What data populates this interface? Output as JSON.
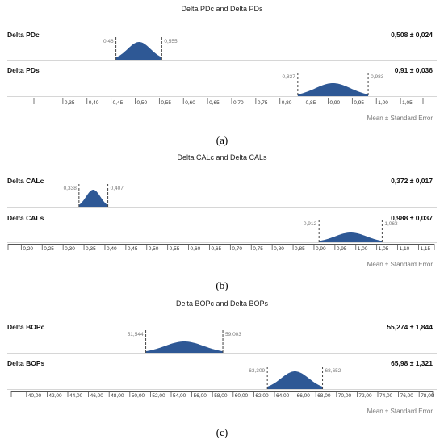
{
  "chart_data": [
    {
      "type": "area",
      "title": "Delta PDc and Delta PDs",
      "caption": "(a)",
      "footer": "Mean ± Standard Error",
      "xlim": [
        0.3,
        1.09
      ],
      "ticks": [
        "0,35",
        "0,40",
        "0,45",
        "0,50",
        "0,55",
        "0,60",
        "0,65",
        "0,70",
        "0,75",
        "0,80",
        "0,85",
        "0,90",
        "0,95",
        "1,00",
        "1,05"
      ],
      "tick_values": [
        0.35,
        0.4,
        0.45,
        0.5,
        0.55,
        0.6,
        0.65,
        0.7,
        0.75,
        0.8,
        0.85,
        0.9,
        0.95,
        1.0,
        1.05
      ],
      "series": [
        {
          "name": "Delta PDc",
          "mean": 0.508,
          "se": 0.024,
          "stat": "0,508 ± 0,024",
          "lower": 0.46,
          "upper": 0.555,
          "lower_label": "0,46",
          "upper_label": "0,555"
        },
        {
          "name": "Delta PDs",
          "mean": 0.91,
          "se": 0.036,
          "stat": "0,91 ± 0,036",
          "lower": 0.837,
          "upper": 0.983,
          "lower_label": "0,837",
          "upper_label": "0,983"
        }
      ]
    },
    {
      "type": "area",
      "title": "Delta CALc and Delta CALs",
      "caption": "(b)",
      "footer": "Mean ± Standard Error",
      "xlim": [
        0.18,
        1.18
      ],
      "ticks": [
        "0,20",
        "0,25",
        "0,30",
        "0,35",
        "0,40",
        "0,45",
        "0,50",
        "0,55",
        "0,60",
        "0,65",
        "0,70",
        "0,75",
        "0,80",
        "0,85",
        "0,90",
        "0,95",
        "1,00",
        "1,05",
        "1,10",
        "1,15"
      ],
      "tick_values": [
        0.2,
        0.25,
        0.3,
        0.35,
        0.4,
        0.45,
        0.5,
        0.55,
        0.6,
        0.65,
        0.7,
        0.75,
        0.8,
        0.85,
        0.9,
        0.95,
        1.0,
        1.05,
        1.1,
        1.15
      ],
      "series": [
        {
          "name": "Delta CALc",
          "mean": 0.372,
          "se": 0.017,
          "stat": "0,372 ± 0,017",
          "lower": 0.338,
          "upper": 0.407,
          "lower_label": "0,338",
          "upper_label": "0,407"
        },
        {
          "name": "Delta CALs",
          "mean": 0.988,
          "se": 0.037,
          "stat": "0,988 ± 0,037",
          "lower": 0.912,
          "upper": 1.063,
          "lower_label": "0,912",
          "upper_label": "1,063"
        }
      ]
    },
    {
      "type": "area",
      "title": "Delta BOPc and Delta BOPs",
      "caption": "(c)",
      "footer": "Mean ± Standard Error",
      "xlim": [
        39.0,
        79.0
      ],
      "ticks": [
        "40,00",
        "42,00",
        "44,00",
        "46,00",
        "48,00",
        "50,00",
        "52,00",
        "54,00",
        "56,00",
        "58,00",
        "60,00",
        "62,00",
        "64,00",
        "66,00",
        "68,00",
        "70,00",
        "72,00",
        "74,00",
        "76,00",
        "78,00"
      ],
      "tick_values": [
        40,
        42,
        44,
        46,
        48,
        50,
        52,
        54,
        56,
        58,
        60,
        62,
        64,
        66,
        68,
        70,
        72,
        74,
        76,
        78
      ],
      "series": [
        {
          "name": "Delta BOPc",
          "mean": 55.274,
          "se": 1.844,
          "stat": "55,274 ± 1,844",
          "lower": 51.544,
          "upper": 59.003,
          "lower_label": "51,544",
          "upper_label": "59,003"
        },
        {
          "name": "Delta BOPs",
          "mean": 65.98,
          "se": 1.321,
          "stat": "65,98 ± 1,321",
          "lower": 63.309,
          "upper": 68.652,
          "lower_label": "63,309",
          "upper_label": "68,652"
        }
      ]
    }
  ],
  "colors": {
    "fill": "#2e5895",
    "axis": "#555555",
    "dash": "#444444",
    "muted": "#777777"
  }
}
